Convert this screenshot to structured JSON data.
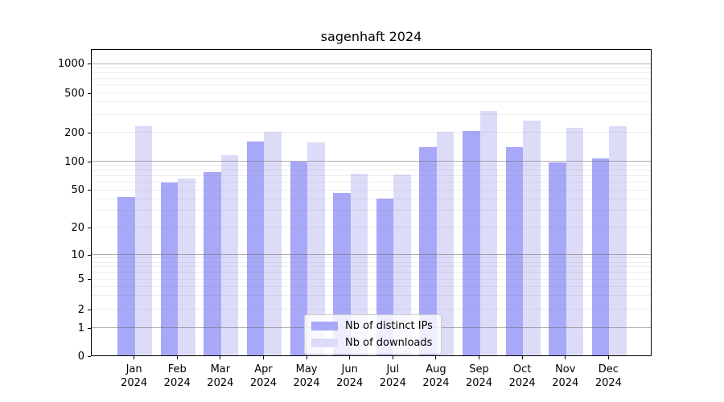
{
  "title": "sagenhaft 2024",
  "chart_data": {
    "type": "bar",
    "title": "sagenhaft 2024",
    "xlabel": "",
    "ylabel": "",
    "categories": [
      "Jan",
      "Feb",
      "Mar",
      "Apr",
      "May",
      "Jun",
      "Jul",
      "Aug",
      "Sep",
      "Oct",
      "Nov",
      "Dec"
    ],
    "year_label": "2024",
    "series": [
      {
        "name": "Nb of distinct IPs",
        "color": "#a8a8f8",
        "values": [
          42,
          59,
          76,
          158,
          98,
          46,
          40,
          140,
          205,
          138,
          96,
          105
        ]
      },
      {
        "name": "Nb of downloads",
        "color": "#dcdcf9",
        "values": [
          228,
          65,
          115,
          200,
          155,
          73,
          72,
          200,
          325,
          260,
          218,
          226
        ]
      }
    ],
    "yscale": "asinh-like (logarithmic above 1, linear 0 to 1)",
    "y_ticks": [
      0,
      1,
      2,
      5,
      10,
      20,
      50,
      100,
      200,
      500,
      1000
    ],
    "y_scale_anchors": [
      [
        0,
        0
      ],
      [
        1,
        0.0916
      ],
      [
        2,
        0.1518
      ],
      [
        5,
        0.2487
      ],
      [
        10,
        0.3298
      ],
      [
        20,
        0.4188
      ],
      [
        50,
        0.5393
      ],
      [
        100,
        0.6335
      ],
      [
        200,
        0.7277
      ],
      [
        500,
        0.856
      ],
      [
        1000,
        0.9503
      ]
    ],
    "ylim": [
      0,
      1440
    ],
    "grid": {
      "major_at": "powers of 10",
      "minor_at": "2-9 multiples of each decade"
    },
    "legend_position": "lower center"
  },
  "legend": {
    "items": [
      "Nb of distinct IPs",
      "Nb of downloads"
    ]
  },
  "colors": {
    "ips_bar": "#a8a8f8",
    "downloads_bar": "#dcdcf9",
    "grid_major": "rgba(100,100,100,0.5)",
    "grid_minor": "rgba(120,120,120,0.13)",
    "axis": "#000000",
    "legend_border": "#cccccc",
    "legend_bg": "rgba(255,255,255,0.8)",
    "text": "#000000"
  }
}
